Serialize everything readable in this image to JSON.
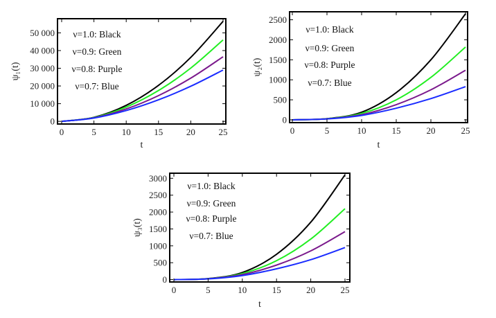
{
  "chart_data": [
    {
      "type": "line",
      "xlabel": "t",
      "ylabel": "ψ₁(t)",
      "xlim": [
        0,
        25
      ],
      "ylim": [
        -1500,
        58000
      ],
      "xticks": [
        0,
        5,
        10,
        15,
        20,
        25
      ],
      "yticks": [
        0,
        10000,
        20000,
        30000,
        40000,
        50000
      ],
      "ytick_labels": [
        "0",
        "10 000",
        "20 000",
        "30 000",
        "40 000",
        "50 000"
      ],
      "grid": false,
      "legend": [
        "ν=1.0:  Black",
        "ν=0.9:  Green",
        "ν=0.8:  Purple",
        "ν=0.7:  Blue"
      ],
      "legend_placement": "top-left",
      "x": [
        0,
        5,
        10,
        15,
        20,
        25
      ],
      "series": [
        {
          "color": "#000000",
          "values": [
            0,
            2260,
            9040,
            20340,
            36160,
            56500
          ]
        },
        {
          "color": "#22ee22",
          "values": [
            0,
            2160,
            8060,
            17420,
            30100,
            46000
          ]
        },
        {
          "color": "#7b1a8c",
          "values": [
            0,
            2010,
            7020,
            14560,
            24420,
            36500
          ]
        },
        {
          "color": "#1a2cff",
          "values": [
            0,
            1880,
            6110,
            12170,
            19850,
            29000
          ]
        }
      ]
    },
    {
      "type": "line",
      "xlabel": "t",
      "ylabel": "ψ₂(t)",
      "xlim": [
        0,
        25
      ],
      "ylim": [
        -70,
        2700
      ],
      "xticks": [
        0,
        5,
        10,
        15,
        20,
        25
      ],
      "yticks": [
        0,
        500,
        1000,
        1500,
        2000,
        2500
      ],
      "ytick_labels": [
        "0",
        "500",
        "1000",
        "1500",
        "2000",
        "2500"
      ],
      "grid": false,
      "legend": [
        "ν=1.0:  Black",
        "ν=0.9:  Green",
        "ν=0.8:  Purple",
        "ν=0.7:  Blue"
      ],
      "legend_placement": "top-left",
      "x": [
        0,
        5,
        10,
        15,
        20,
        25
      ],
      "series": [
        {
          "color": "#000000",
          "values": [
            0,
            30,
            190,
            680,
            1500,
            2650
          ]
        },
        {
          "color": "#22ee22",
          "values": [
            0,
            28,
            160,
            500,
            1060,
            1820
          ]
        },
        {
          "color": "#7b1a8c",
          "values": [
            0,
            25,
            130,
            380,
            750,
            1240
          ]
        },
        {
          "color": "#1a2cff",
          "values": [
            0,
            22,
            110,
            290,
            530,
            830
          ]
        }
      ]
    },
    {
      "type": "line",
      "xlabel": "t",
      "ylabel": "ψ₃(t)",
      "xlim": [
        0,
        25
      ],
      "ylim": [
        -70,
        3150
      ],
      "xticks": [
        0,
        5,
        10,
        15,
        20,
        25
      ],
      "yticks": [
        0,
        500,
        1000,
        1500,
        2000,
        2500,
        3000
      ],
      "ytick_labels": [
        "0",
        "500",
        "1000",
        "1500",
        "2000",
        "2500",
        "3000"
      ],
      "grid": false,
      "legend": [
        "ν=1.0:  Black",
        "ν=0.9:  Green",
        "ν=0.8:  Purple",
        "ν=0.7:  Blue"
      ],
      "legend_placement": "top-left",
      "x": [
        0,
        5,
        10,
        15,
        20,
        25
      ],
      "series": [
        {
          "color": "#000000",
          "values": [
            0,
            30,
            210,
            750,
            1700,
            3100
          ]
        },
        {
          "color": "#22ee22",
          "values": [
            0,
            28,
            180,
            560,
            1200,
            2100
          ]
        },
        {
          "color": "#7b1a8c",
          "values": [
            0,
            25,
            150,
            430,
            850,
            1420
          ]
        },
        {
          "color": "#1a2cff",
          "values": [
            0,
            22,
            120,
            320,
            590,
            950
          ]
        }
      ]
    }
  ]
}
